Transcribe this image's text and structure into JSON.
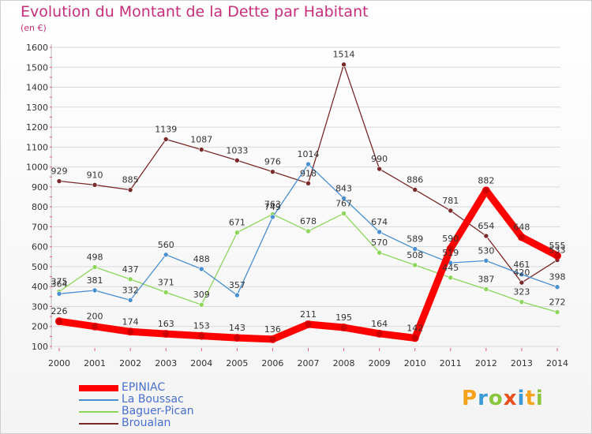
{
  "title": "Evolution du Montant de la Dette par Habitant",
  "subtitle": "(en €)",
  "colors": {
    "title": "#c72e7a",
    "legend_text": "#4a6fd0",
    "grid": "#d9d9d9",
    "axis_tick": "#e05a8a"
  },
  "logo": {
    "letters": [
      "P",
      "r",
      "o",
      "x",
      "i",
      "t",
      "i"
    ],
    "colors": [
      "#f7a21b",
      "#3c9ad6",
      "#8cc63f",
      "#e94e1b",
      "#3c9ad6",
      "#f7a21b",
      "#8cc63f"
    ]
  },
  "chart_data": {
    "type": "line",
    "title": "Evolution du Montant de la Dette par Habitant",
    "ylabel": "(en €)",
    "xlabel": "",
    "categories": [
      "2000",
      "2001",
      "2002",
      "2003",
      "2004",
      "2005",
      "2006",
      "2007",
      "2008",
      "2009",
      "2010",
      "2011",
      "2012",
      "2013",
      "2014"
    ],
    "ylim": [
      100,
      1600
    ],
    "yticks": [
      100,
      200,
      300,
      400,
      500,
      600,
      700,
      800,
      900,
      1000,
      1100,
      1200,
      1300,
      1400,
      1500,
      1600
    ],
    "grid": "horizontal",
    "legend_position": "bottom-left",
    "series": [
      {
        "name": "EPINIAC",
        "color": "#ff0000",
        "values": [
          226,
          200,
          174,
          163,
          153,
          143,
          136,
          211,
          195,
          164,
          142,
          590,
          882,
          648,
          555
        ]
      },
      {
        "name": "La Boussac",
        "color": "#4a8fd0",
        "values": [
          364,
          381,
          332,
          560,
          488,
          357,
          749,
          1014,
          843,
          674,
          589,
          519,
          530,
          461,
          398
        ]
      },
      {
        "name": "Baguer-Pican",
        "color": "#8cd65a",
        "values": [
          375,
          498,
          437,
          371,
          309,
          671,
          763,
          678,
          767,
          570,
          508,
          445,
          387,
          323,
          272
        ]
      },
      {
        "name": "Broualan",
        "color": "#7a2a2a",
        "values": [
          929,
          910,
          885,
          1139,
          1087,
          1033,
          976,
          918,
          1514,
          990,
          886,
          781,
          654,
          420,
          533
        ]
      }
    ]
  }
}
